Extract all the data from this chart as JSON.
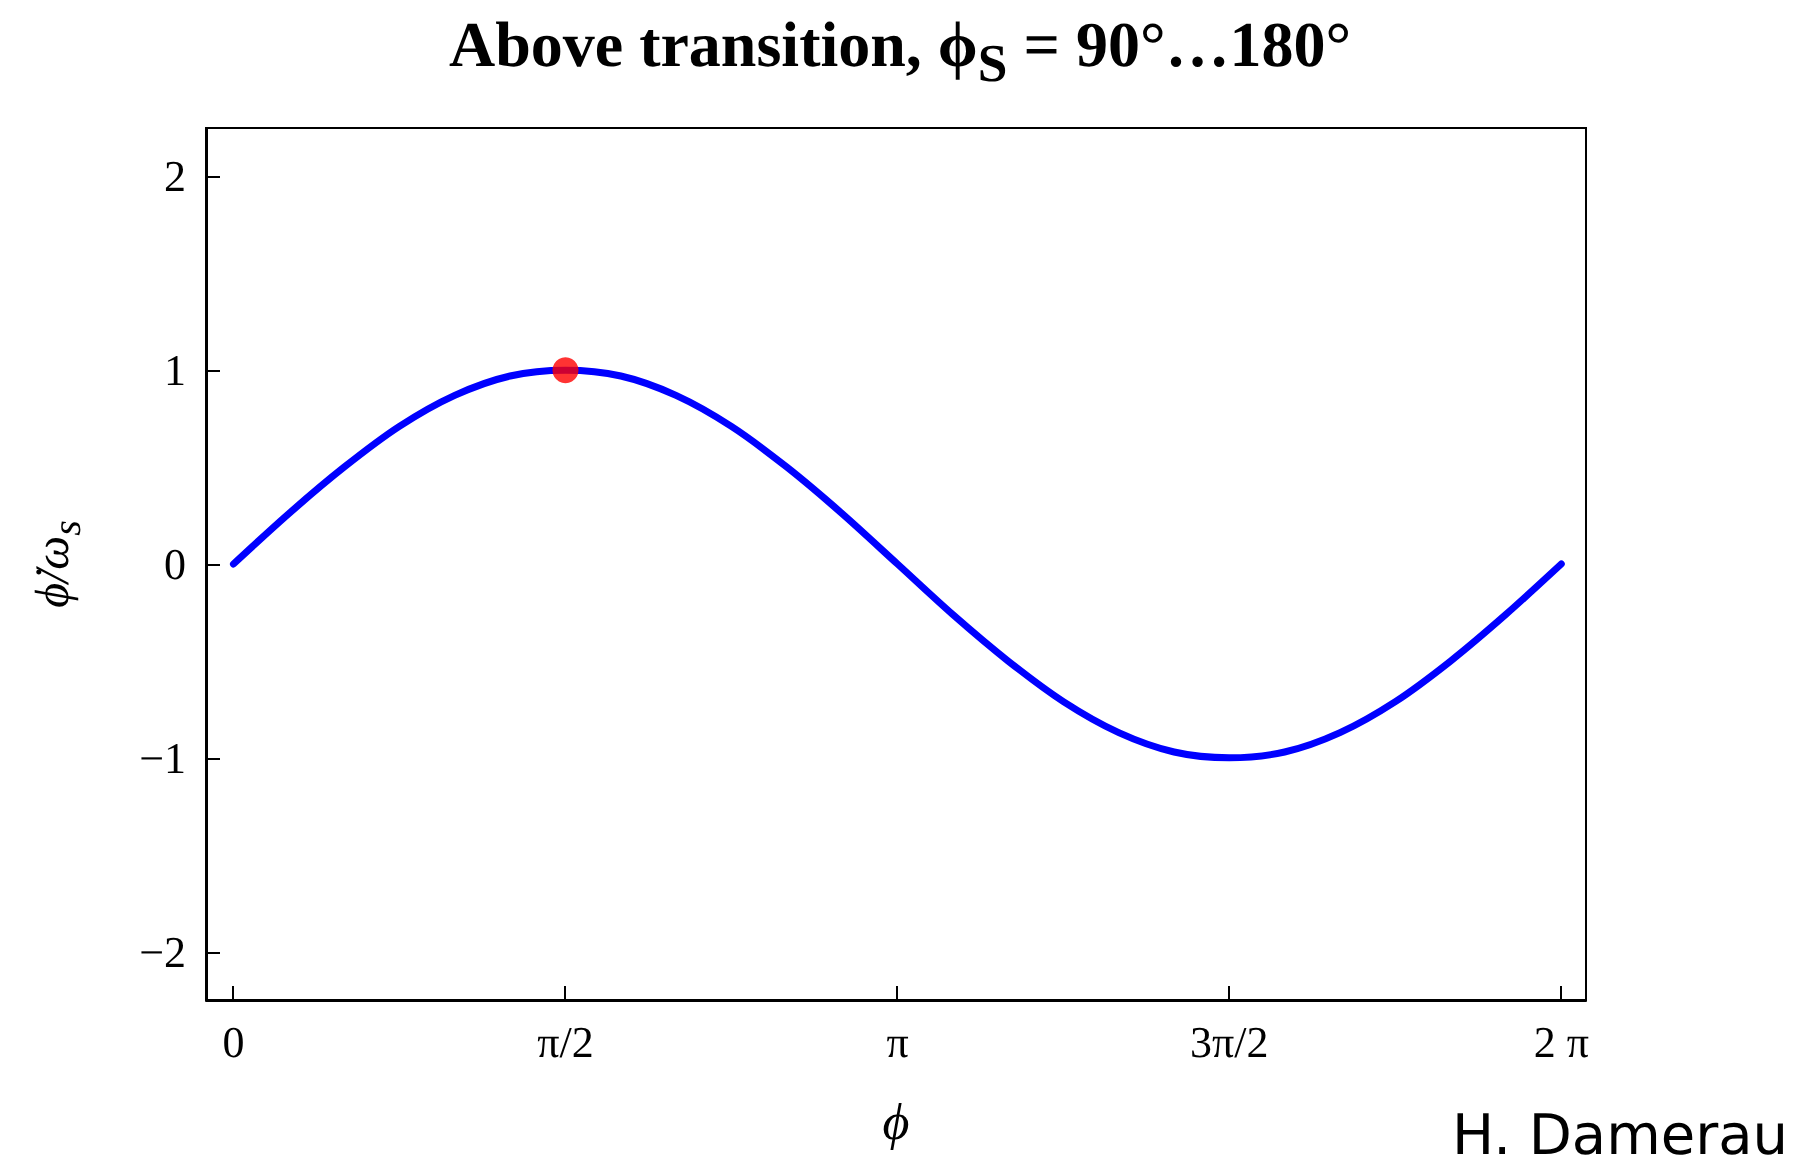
{
  "chart_data": {
    "type": "line",
    "title": "Above transition, ϕ$_{S}$ = 90°…180°",
    "xlabel": "ϕ",
    "ylabel": "ϕ̇/ω$_{s}$",
    "annotations": [
      "H. Damerau"
    ],
    "series": [
      {
        "color": "#0000ff",
        "marker": "none",
        "x": [
          0,
          0.262,
          0.524,
          0.785,
          1.047,
          1.309,
          1.571,
          1.833,
          2.094,
          2.356,
          2.618,
          2.88,
          3.142,
          3.403,
          3.665,
          3.927,
          4.189,
          4.451,
          4.712,
          4.974,
          5.236,
          5.498,
          5.76,
          6.021,
          6.283
        ],
        "values": [
          0,
          0.26,
          0.5,
          0.71,
          0.87,
          0.97,
          1,
          0.97,
          0.87,
          0.71,
          0.5,
          0.26,
          0,
          -0.26,
          -0.5,
          -0.71,
          -0.87,
          -0.97,
          -1,
          -0.97,
          -0.87,
          -0.71,
          -0.5,
          -0.26,
          0
        ]
      },
      {
        "type": "scatter",
        "color": "#ff0000",
        "marker": "circle",
        "x": [
          1.571
        ],
        "values": [
          1
        ]
      }
    ],
    "xlim": [
      -0.13,
      6.4
    ],
    "ylim": [
      -2.25,
      2.25
    ],
    "xticks": [
      {
        "value": 0,
        "label": "0"
      },
      {
        "value": 1.571,
        "label": "π/2"
      },
      {
        "value": 3.142,
        "label": "π"
      },
      {
        "value": 4.712,
        "label": "3π/2"
      },
      {
        "value": 6.283,
        "label": "2 π"
      }
    ],
    "yticks": [
      -2,
      -1,
      0,
      1,
      2
    ]
  }
}
